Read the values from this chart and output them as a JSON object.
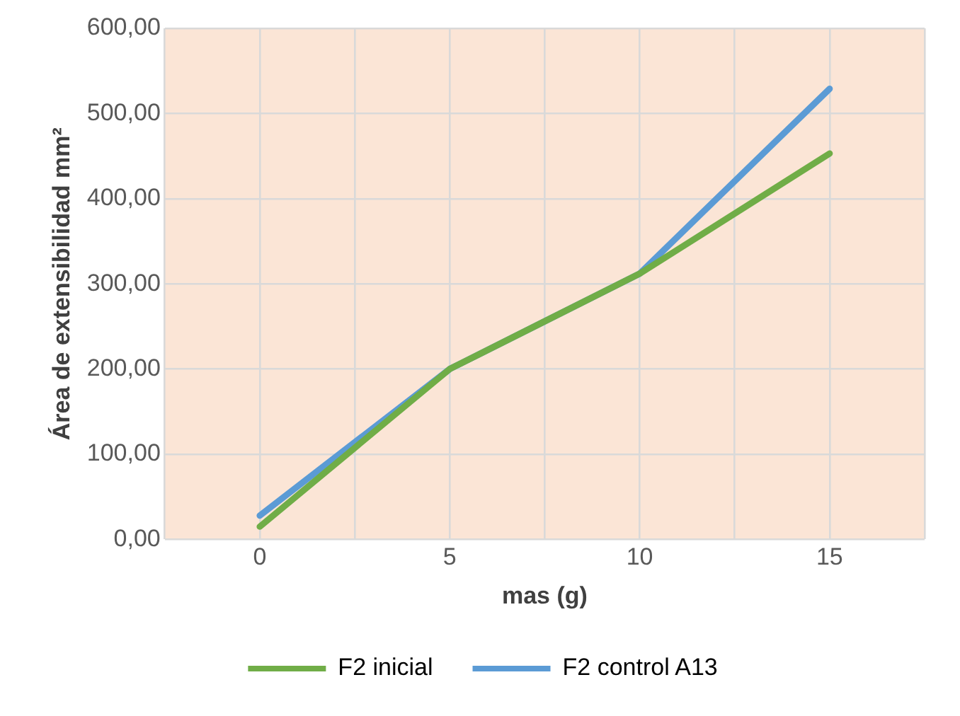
{
  "chart_data": {
    "type": "line",
    "xlabel": "mas (g)",
    "ylabel": "Área de extensibilidad mm²",
    "x": [
      0,
      5,
      10,
      15
    ],
    "series": [
      {
        "name": "F2 inicial",
        "color": "#70ad47",
        "values": [
          15,
          200,
          312,
          453
        ]
      },
      {
        "name": "F2 control A13",
        "color": "#5b9bd5",
        "values": [
          28,
          200,
          312,
          529
        ]
      }
    ],
    "xlim": [
      -2.5,
      17.5
    ],
    "xticks": [
      {
        "value": -2.5,
        "label": null
      },
      0,
      {
        "value": 2.5,
        "label": null
      },
      5,
      {
        "value": 7.5,
        "label": null
      },
      10,
      {
        "value": 12.5,
        "label": null
      },
      15,
      {
        "value": 17.5,
        "label": null
      }
    ],
    "ylim": [
      0,
      600
    ],
    "yticks": [
      {
        "value": 0,
        "label": "0,00"
      },
      {
        "value": 100,
        "label": "100,00"
      },
      {
        "value": 200,
        "label": "200,00"
      },
      {
        "value": 300,
        "label": "300,00"
      },
      {
        "value": 400,
        "label": "400,00"
      },
      {
        "value": 500,
        "label": "500,00"
      },
      {
        "value": 600,
        "label": "600,00"
      }
    ],
    "grid": true,
    "legend": "bottom",
    "marker": "none",
    "line_style": "solid"
  }
}
